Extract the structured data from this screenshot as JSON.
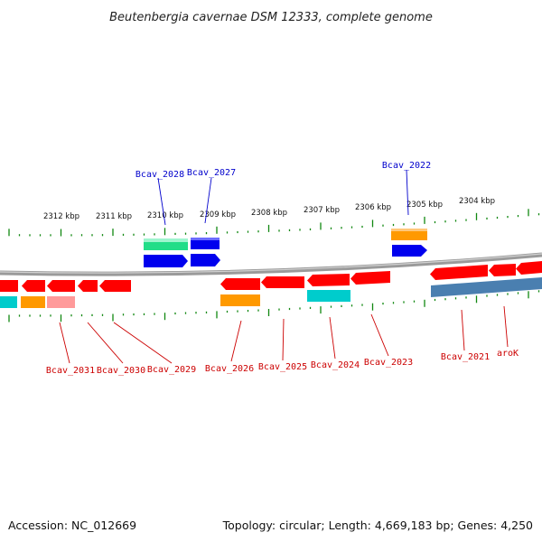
{
  "title": "Beutenbergia cavernae DSM 12333, complete genome",
  "footer": {
    "accession": "Accession: NC_012669",
    "summary": "Topology: circular; Length: 4,669,183 bp; Genes: 4,250"
  },
  "colors": {
    "red": "#ff0000",
    "orange": "#ff9900",
    "cyan": "#00cccc",
    "pink": "#ff9a9a",
    "blue": "#0000ee",
    "green": "#22dd88",
    "steel": "#4a7fb0",
    "tick": "#118811",
    "backbone": "#888888",
    "label_blue": "#0000cc",
    "label_red": "#cc0000"
  },
  "ticks": [
    "2312 kbp",
    "2311 kbp",
    "2310 kbp",
    "2309 kbp",
    "2308 kbp",
    "2307 kbp",
    "2306 kbp",
    "2305 kbp",
    "2304 kbp"
  ],
  "labels_top": [
    "Bcav_2028",
    "Bcav_2027",
    "Bcav_2022"
  ],
  "labels_bottom": [
    "Bcav_2031",
    "Bcav_2030",
    "Bcav_2029",
    "Bcav_2026",
    "Bcav_2025",
    "Bcav_2024",
    "Bcav_2023",
    "Bcav_2021",
    "aroK"
  ]
}
